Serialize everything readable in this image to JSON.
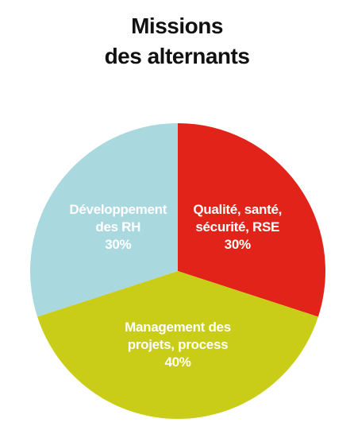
{
  "chart_data": {
    "type": "pie",
    "title": "Missions\ndes alternants",
    "categories": [
      "Qualité, santé,\nsécurité, RSE",
      "Management des\nprojets, process",
      "Développement\ndes RH"
    ],
    "values": [
      30,
      40,
      30
    ],
    "value_labels": [
      "30%",
      "40%",
      "30%"
    ],
    "colors": [
      "#e2231a",
      "#c9cd17",
      "#a9d8de"
    ]
  }
}
